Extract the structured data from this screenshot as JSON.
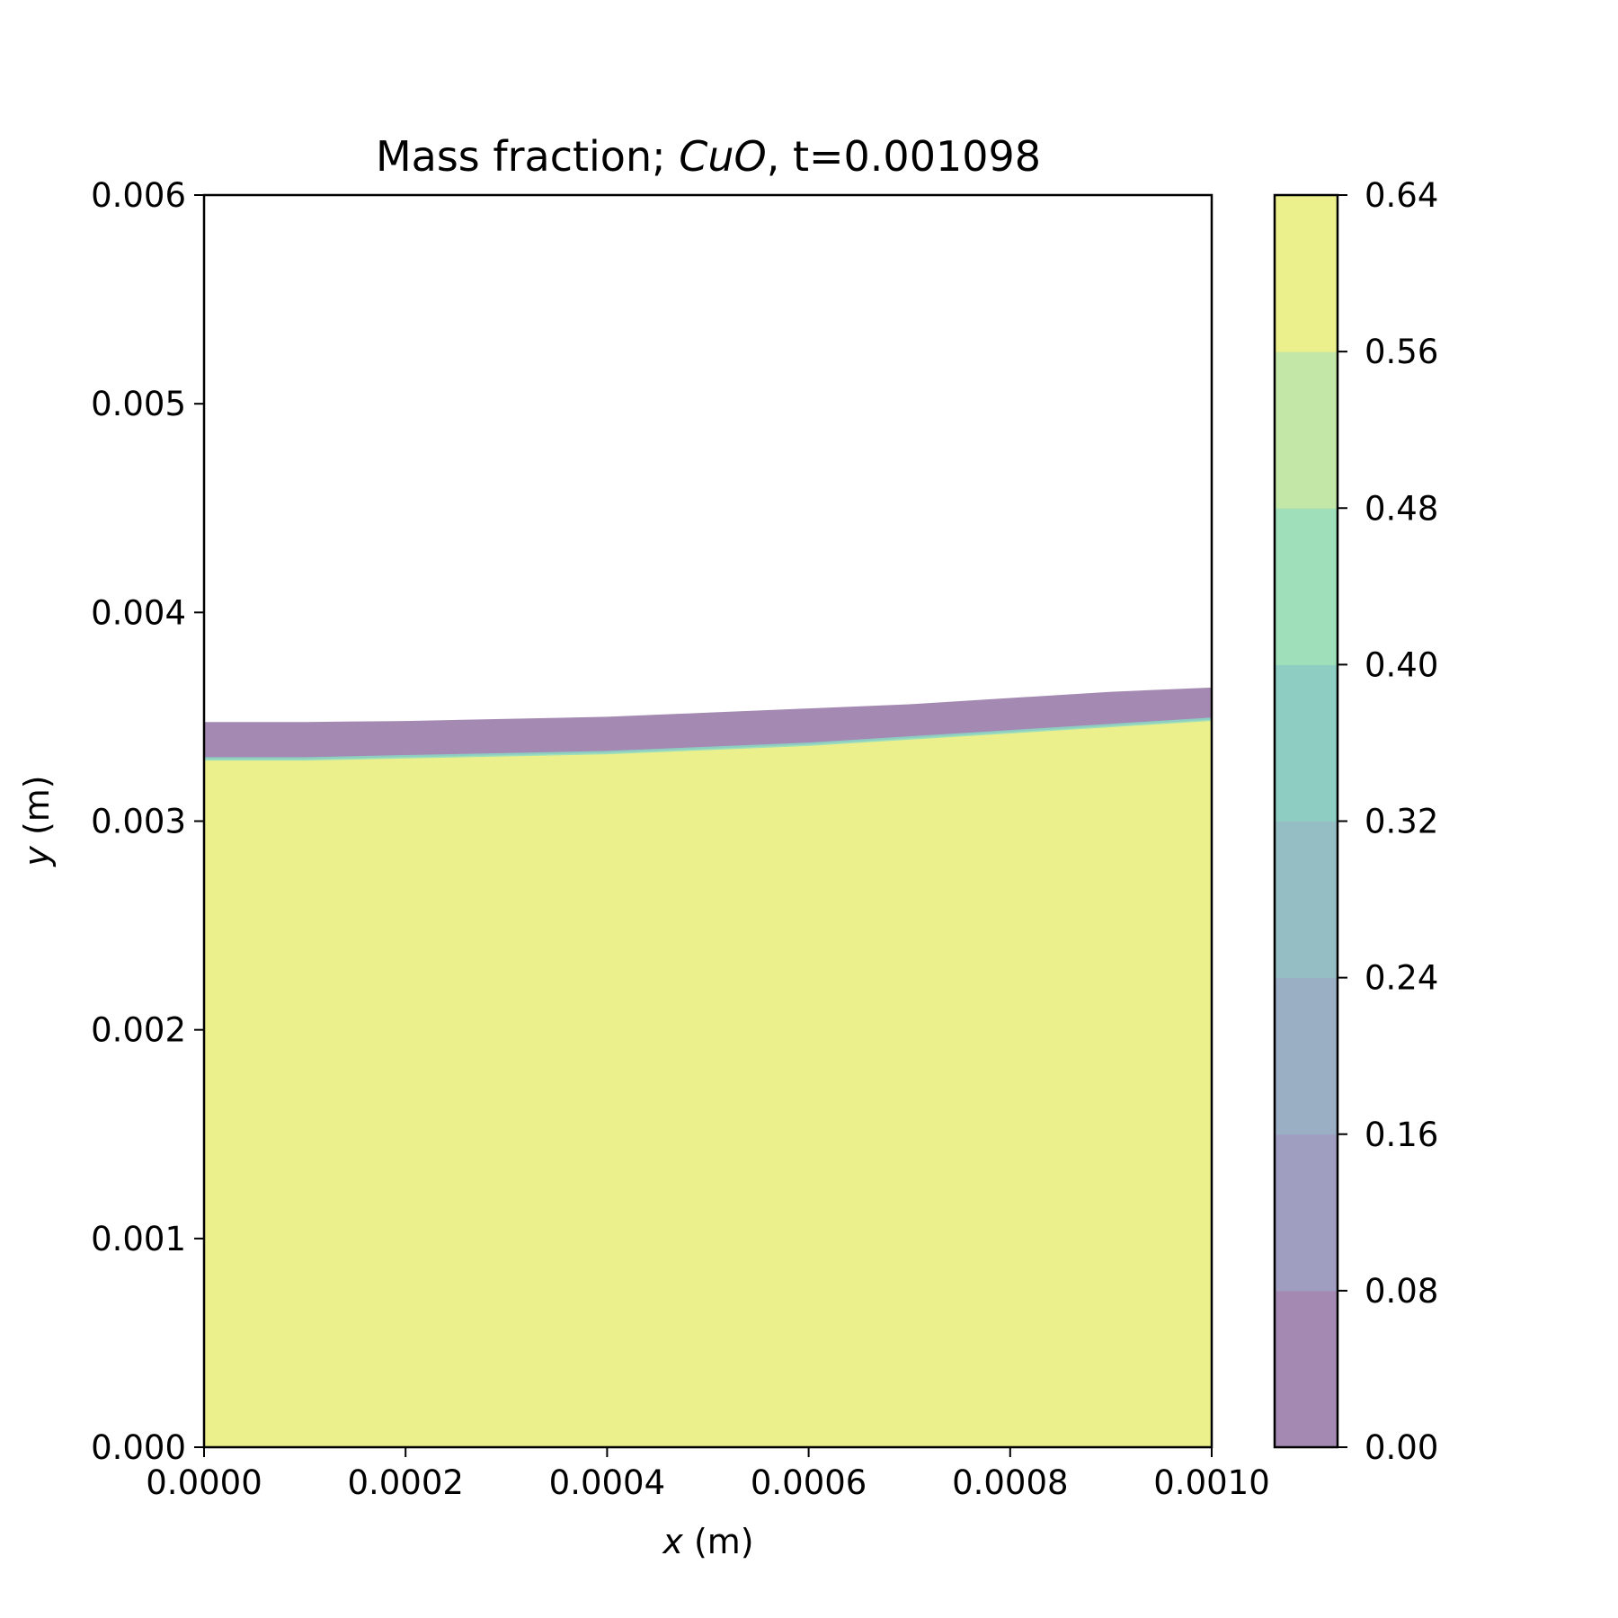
{
  "chart_data": {
    "type": "contour",
    "title": {
      "prefix": "Mass fraction; ",
      "species": "CuO",
      "suffix": ", t=0.001098"
    },
    "xlabel": {
      "var": "x",
      "unit": " (m)"
    },
    "ylabel": {
      "var": "y",
      "unit": " (m)"
    },
    "xlim": [
      0,
      0.001
    ],
    "ylim": [
      0,
      0.006
    ],
    "x_ticks": [
      0,
      0.0002,
      0.0004,
      0.0006,
      0.0008,
      0.001
    ],
    "x_tick_labels": [
      "0.0000",
      "0.0002",
      "0.0004",
      "0.0006",
      "0.0008",
      "0.0010"
    ],
    "y_ticks": [
      0,
      0.001,
      0.002,
      0.003,
      0.004,
      0.005,
      0.006
    ],
    "y_tick_labels": [
      "0.000",
      "0.001",
      "0.002",
      "0.003",
      "0.004",
      "0.005",
      "0.006"
    ],
    "colorbar": {
      "levels": [
        0,
        0.08,
        0.16,
        0.24,
        0.32,
        0.4,
        0.48,
        0.56,
        0.64
      ],
      "tick_labels": [
        "0.00",
        "0.08",
        "0.16",
        "0.24",
        "0.32",
        "0.40",
        "0.48",
        "0.56",
        "0.64"
      ],
      "colors": [
        "#a48ab2",
        "#a09ec0",
        "#9aaec4",
        "#95bec4",
        "#8ecec2",
        "#9fdfb9",
        "#c3e7a6",
        "#ebef8c"
      ]
    },
    "interface": {
      "x": [
        0,
        0.0001,
        0.0002,
        0.0003,
        0.0004,
        0.0005,
        0.0006,
        0.0007,
        0.0008,
        0.0009,
        0.001
      ],
      "upper_y": [
        0.003475,
        0.003475,
        0.00348,
        0.00349,
        0.0035,
        0.00352,
        0.00354,
        0.00356,
        0.00359,
        0.00362,
        0.00364
      ],
      "lower_y": [
        0.0033,
        0.0033,
        0.00331,
        0.00332,
        0.00333,
        0.00335,
        0.00337,
        0.0034,
        0.00343,
        0.00346,
        0.00349
      ]
    },
    "grid": false,
    "legend": "none"
  }
}
